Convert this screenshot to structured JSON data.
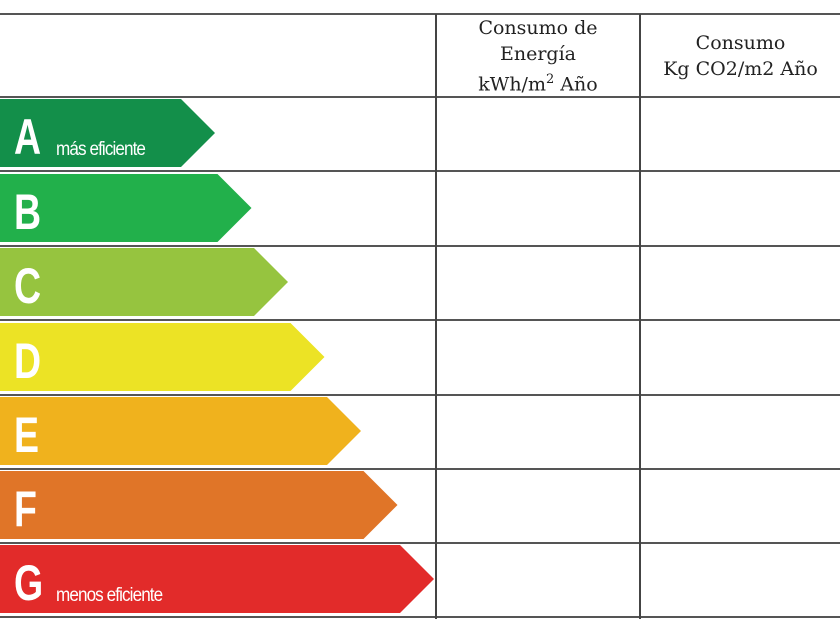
{
  "header": {
    "energy_col": {
      "line1": "Consumo de",
      "line2": "Energía",
      "line3_unit": "kWh/m",
      "line3_sup": "2",
      "line3_tail": " Año"
    },
    "co2_col": {
      "line1": "Consumo",
      "line2": "Kg CO2/m2 Año"
    }
  },
  "ratings": [
    {
      "letter": "A",
      "note": "más eficiente",
      "color": "#138f4a"
    },
    {
      "letter": "B",
      "note": "",
      "color": "#22b04b"
    },
    {
      "letter": "C",
      "note": "",
      "color": "#96c43f"
    },
    {
      "letter": "D",
      "note": "",
      "color": "#ece325"
    },
    {
      "letter": "E",
      "note": "",
      "color": "#f0b21d"
    },
    {
      "letter": "F",
      "note": "",
      "color": "#e07528"
    },
    {
      "letter": "G",
      "note": "menos eficiente",
      "color": "#e22b2a"
    }
  ]
}
